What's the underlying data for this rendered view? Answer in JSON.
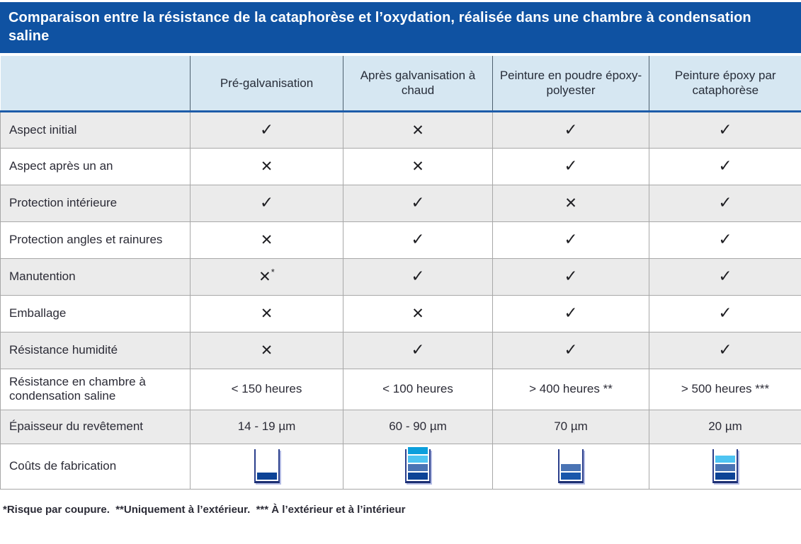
{
  "title": "Comparaison entre la résistance de la cataphorèse et l’oxydation, réalisée dans une chambre à condensation saline",
  "columns": [
    "",
    "Pré-galvanisation",
    "Après galvanisation à chaud",
    "Peinture en poudre époxy-polyester",
    "Peinture époxy par cataphorèse"
  ],
  "glyphs": {
    "check": "✓",
    "cross": "✕"
  },
  "colors": {
    "title_bar": "#0f52a2",
    "header_bg": "#d6e7f2",
    "header_rule_blue": "#1d5ca9",
    "row_shade": "#ebebeb",
    "bands": {
      "bright": "#0c9fdc",
      "cyan": "#4ec4f2",
      "slate": "#4a74b4",
      "dark": "#0d4396",
      "navy": "#1a57ab"
    }
  },
  "rows": [
    {
      "label": "Aspect initial",
      "cells": [
        {
          "type": "check"
        },
        {
          "type": "cross"
        },
        {
          "type": "check"
        },
        {
          "type": "check"
        }
      ]
    },
    {
      "label": "Aspect après un an",
      "cells": [
        {
          "type": "cross"
        },
        {
          "type": "cross"
        },
        {
          "type": "check"
        },
        {
          "type": "check"
        }
      ]
    },
    {
      "label": "Protection intérieure",
      "cells": [
        {
          "type": "check"
        },
        {
          "type": "check"
        },
        {
          "type": "cross"
        },
        {
          "type": "check"
        }
      ]
    },
    {
      "label": "Protection angles et rainures",
      "cells": [
        {
          "type": "cross"
        },
        {
          "type": "check"
        },
        {
          "type": "check"
        },
        {
          "type": "check"
        }
      ]
    },
    {
      "label": "Manutention",
      "cells": [
        {
          "type": "cross",
          "note": "*"
        },
        {
          "type": "check"
        },
        {
          "type": "check"
        },
        {
          "type": "check"
        }
      ]
    },
    {
      "label": "Emballage",
      "cells": [
        {
          "type": "cross"
        },
        {
          "type": "cross"
        },
        {
          "type": "check"
        },
        {
          "type": "check"
        }
      ]
    },
    {
      "label": "Résistance humidité",
      "cells": [
        {
          "type": "cross"
        },
        {
          "type": "check"
        },
        {
          "type": "check"
        },
        {
          "type": "check"
        }
      ]
    },
    {
      "label": "Résistance en chambre à condensation saline",
      "cells": [
        {
          "type": "text",
          "value": "< 150 heures"
        },
        {
          "type": "text",
          "value": "< 100 heures"
        },
        {
          "type": "text",
          "value": "> 400 heures **"
        },
        {
          "type": "text",
          "value": "> 500 heures ***"
        }
      ]
    },
    {
      "label": "Épaisseur du revêtement",
      "cells": [
        {
          "type": "text",
          "value": "14 - 19 µm"
        },
        {
          "type": "text",
          "value": "60 - 90 µm"
        },
        {
          "type": "text",
          "value": "70 µm"
        },
        {
          "type": "text",
          "value": "20 µm"
        }
      ]
    },
    {
      "label": "Coûts de fabrication",
      "cells": [
        {
          "type": "beaker",
          "levels": [
            "dark"
          ]
        },
        {
          "type": "beaker",
          "levels": [
            "bright",
            "cyan",
            "slate",
            "dark"
          ]
        },
        {
          "type": "beaker",
          "levels": [
            "slate",
            "navy"
          ]
        },
        {
          "type": "beaker",
          "levels": [
            "cyan",
            "slate",
            "dark"
          ]
        }
      ]
    }
  ],
  "footnote": "*Risque par coupure.  **Uniquement à l’extérieur.  *** À l’extérieur et à l’intérieur"
}
